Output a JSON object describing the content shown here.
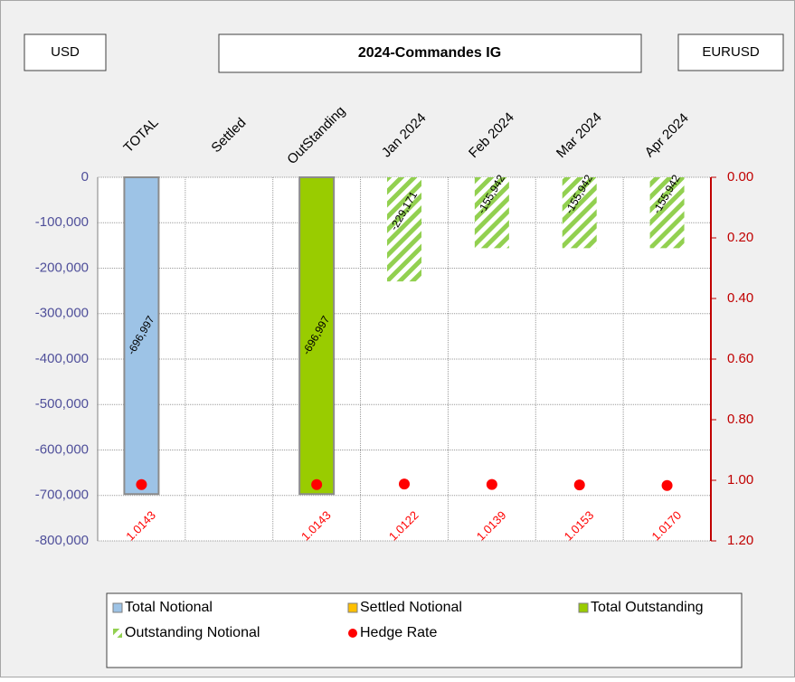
{
  "chart_data": {
    "type": "bar",
    "title": "2024-Commandes IG",
    "currency": "USD",
    "pair": "EURUSD",
    "categories": [
      "TOTAL",
      "Settled",
      "OutStanding",
      "Jan 2024",
      "Feb 2024",
      "Mar 2024",
      "Apr 2024"
    ],
    "series": [
      {
        "name": "Total Notional",
        "color": "#9dc3e6",
        "values": [
          -696997,
          null,
          null,
          null,
          null,
          null,
          null
        ],
        "value_labels": [
          "-696,997",
          null,
          null,
          null,
          null,
          null,
          null
        ]
      },
      {
        "name": "Settled Notional",
        "color": "#ffc000",
        "values": [
          null,
          null,
          null,
          null,
          null,
          null,
          null
        ]
      },
      {
        "name": "Total Outstanding",
        "color": "#99cc00",
        "values": [
          null,
          null,
          -696997,
          null,
          null,
          null,
          null
        ],
        "value_labels": [
          null,
          null,
          "-696,997",
          null,
          null,
          null,
          null
        ]
      },
      {
        "name": "Outstanding Notional",
        "color": "#92d050",
        "pattern": "hatch",
        "values": [
          null,
          null,
          null,
          -229171,
          -155942,
          -155942,
          -155942
        ],
        "value_labels": [
          null,
          null,
          null,
          "-229,171",
          "-155,942",
          "-155,942",
          "-155,942"
        ]
      },
      {
        "name": "Hedge Rate",
        "color": "#ff0000",
        "type": "scatter",
        "axis": "y2",
        "values": [
          1.0143,
          null,
          1.0143,
          1.0122,
          1.0139,
          1.0153,
          1.017
        ],
        "value_labels": [
          "1.0143",
          null,
          "1.0143",
          "1.0122",
          "1.0139",
          "1.0153",
          "1.0170"
        ]
      }
    ],
    "ylim": [
      -800000,
      0
    ],
    "yticks": [
      0,
      {
        "value": -100000,
        "label": "-100,000"
      },
      {
        "value": -200000,
        "label": "-200,000"
      },
      {
        "value": -300000,
        "label": "-300,000"
      },
      {
        "value": -400000,
        "label": "-400,000"
      },
      {
        "value": -500000,
        "label": "-500,000"
      },
      {
        "value": -600000,
        "label": "-600,000"
      },
      {
        "value": -700000,
        "label": "-700,000"
      },
      {
        "value": -800000,
        "label": "-800,000"
      }
    ],
    "y2lim": [
      0,
      1.2
    ],
    "y2_reversed": true,
    "y2ticks": [
      {
        "value": 0,
        "label": "0.00"
      },
      {
        "value": 0.2,
        "label": "0.20"
      },
      {
        "value": 0.4,
        "label": "0.40"
      },
      {
        "value": 0.6,
        "label": "0.60"
      },
      {
        "value": 0.8,
        "label": "0.80"
      },
      {
        "value": 1,
        "label": "1.00"
      },
      {
        "value": 1.2,
        "label": "1.20"
      }
    ],
    "grid": true,
    "legend": "bottom"
  }
}
